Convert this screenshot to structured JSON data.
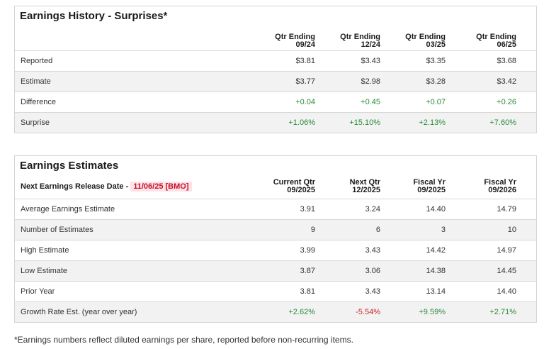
{
  "history": {
    "title": "Earnings History - Surprises*",
    "columns": [
      {
        "line1": "Qtr Ending",
        "line2": "09/24"
      },
      {
        "line1": "Qtr Ending",
        "line2": "12/24"
      },
      {
        "line1": "Qtr Ending",
        "line2": "03/25"
      },
      {
        "line1": "Qtr Ending",
        "line2": "06/25"
      }
    ],
    "rows": [
      {
        "label": "Reported",
        "values": [
          "$3.81",
          "$3.43",
          "$3.35",
          "$3.68"
        ]
      },
      {
        "label": "Estimate",
        "values": [
          "$3.77",
          "$2.98",
          "$3.28",
          "$3.42"
        ]
      },
      {
        "label": "Difference",
        "values": [
          "+0.04",
          "+0.45",
          "+0.07",
          "+0.26"
        ]
      },
      {
        "label": "Surprise",
        "values": [
          "+1.06%",
          "+15.10%",
          "+2.13%",
          "+7.60%"
        ]
      }
    ]
  },
  "estimates": {
    "title": "Earnings Estimates",
    "release_label": "Next Earnings Release Date -",
    "release_date": "11/06/25 [BMO]",
    "columns": [
      {
        "line1": "Current Qtr",
        "line2": "09/2025"
      },
      {
        "line1": "Next Qtr",
        "line2": "12/2025"
      },
      {
        "line1": "Fiscal Yr",
        "line2": "09/2025"
      },
      {
        "line1": "Fiscal Yr",
        "line2": "09/2026"
      }
    ],
    "rows": [
      {
        "label": "Average Earnings Estimate",
        "values": [
          "3.91",
          "3.24",
          "14.40",
          "14.79"
        ]
      },
      {
        "label": "Number of Estimates",
        "values": [
          "9",
          "6",
          "3",
          "10"
        ]
      },
      {
        "label": "High Estimate",
        "values": [
          "3.99",
          "3.43",
          "14.42",
          "14.97"
        ]
      },
      {
        "label": "Low Estimate",
        "values": [
          "3.87",
          "3.06",
          "14.38",
          "14.45"
        ]
      },
      {
        "label": "Prior Year",
        "values": [
          "3.81",
          "3.43",
          "13.14",
          "14.40"
        ]
      },
      {
        "label": "Growth Rate Est. (year over year)",
        "values": [
          "+2.62%",
          "-5.54%",
          "+9.59%",
          "+2.71%"
        ]
      }
    ]
  },
  "colors": {
    "positive": "#2a8a3a",
    "negative": "#cc2222",
    "badge_bg": "#fde3e6",
    "badge_text": "#c8102e"
  },
  "footnote": "*Earnings numbers reflect diluted earnings per share, reported before non-recurring items."
}
